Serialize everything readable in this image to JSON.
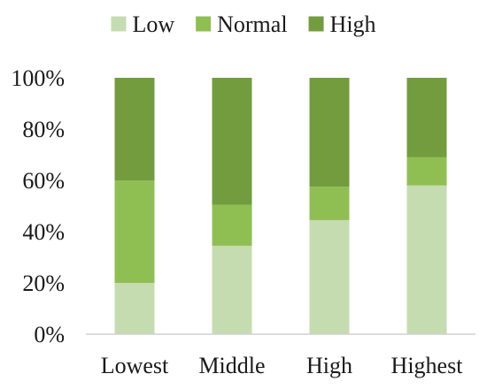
{
  "chart_data": {
    "type": "bar",
    "stacked": true,
    "normalized": true,
    "categories": [
      "Lowest",
      "Middle",
      "High",
      "Highest"
    ],
    "series": [
      {
        "name": "Low",
        "color": "#c5dcb0",
        "values": [
          20,
          34.5,
          44.5,
          58
        ]
      },
      {
        "name": "Normal",
        "color": "#8fbf52",
        "values": [
          40,
          16,
          13,
          11
        ]
      },
      {
        "name": "High",
        "color": "#739c3f",
        "values": [
          40,
          49.5,
          42.5,
          31
        ]
      }
    ],
    "ylim": [
      0,
      100
    ],
    "yticks": [
      "0%",
      "20%",
      "40%",
      "60%",
      "80%",
      "100%"
    ],
    "title": "",
    "xlabel": "",
    "ylabel": "",
    "grid": false,
    "legend": "top"
  }
}
